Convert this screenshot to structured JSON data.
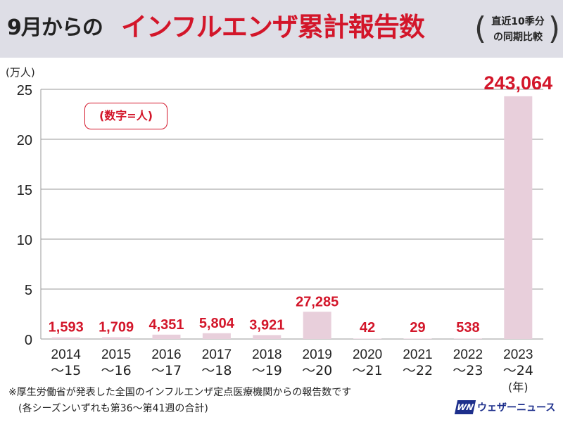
{
  "header": {
    "title_lead": "9月からの",
    "title_main": "インフルエンザ累計報告数",
    "subtitle_line1": "直近10季分",
    "subtitle_line2": "の同期比較",
    "paren_open": "(",
    "paren_close": ")"
  },
  "unit_label": "(万人)",
  "note_label": "(数字=人)",
  "footnotes": [
    "※厚生労働省が発表した全国のインフルエンザ定点医療機関からの報告数です",
    "(各シーズンいずれも第36〜第41週の合計)"
  ],
  "logo": {
    "mark": "WN",
    "name": "ウェザーニュース"
  },
  "colors": {
    "bar": "#e8cfdb",
    "grid": "#9a9a9a",
    "value_label": "#d3162a",
    "title_red": "#d3162a",
    "header_bg": "#dedee6"
  },
  "chart_data": {
    "type": "bar",
    "title": "9月からのインフルエンザ累計報告数",
    "ylabel": "(万人)",
    "ylim": [
      0,
      25
    ],
    "yticks": [
      0,
      5,
      10,
      15,
      20,
      25
    ],
    "grid": true,
    "categories": [
      {
        "line1": "2014",
        "line2": "〜15"
      },
      {
        "line1": "2015",
        "line2": "〜16"
      },
      {
        "line1": "2016",
        "line2": "〜17"
      },
      {
        "line1": "2017",
        "line2": "〜18"
      },
      {
        "line1": "2018",
        "line2": "〜19"
      },
      {
        "line1": "2019",
        "line2": "〜20"
      },
      {
        "line1": "2020",
        "line2": "〜21"
      },
      {
        "line1": "2021",
        "line2": "〜22"
      },
      {
        "line1": "2022",
        "line2": "〜23"
      },
      {
        "line1": "2023",
        "line2": "〜24"
      }
    ],
    "x_unit_label": "(年)",
    "values": [
      1593,
      1709,
      4351,
      5804,
      3921,
      27285,
      42,
      29,
      538,
      243064
    ],
    "value_labels": [
      "1,593",
      "1,709",
      "4,351",
      "5,804",
      "3,921",
      "27,285",
      "42",
      "29",
      "538",
      "243,064"
    ]
  }
}
